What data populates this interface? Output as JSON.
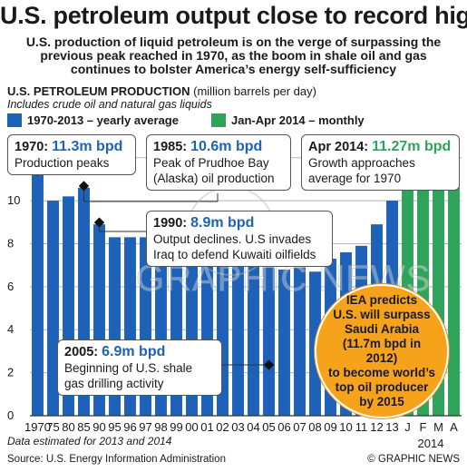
{
  "headline": "U.S. petroleum output close to record high",
  "subhead": "U.S. production of liquid petroleum is on the verge of surpassing the previous peak reached in 1970, as the boom in shale oil and gas continues to bolster America’s energy self-sufficiency",
  "chart_title": "U.S. PETROLEUM PRODUCTION",
  "chart_unit": "(million barrels per day)",
  "chart_note": "Includes crude oil and natural gas liquids",
  "legend": {
    "yearly": "1970-2013 – yearly average",
    "monthly": "Jan-Apr 2014 – monthly"
  },
  "callouts": {
    "c1970": {
      "label": "1970:",
      "value": "11.3m bpd",
      "text": "Production peaks"
    },
    "c1985": {
      "label": "1985:",
      "value": "10.6m bpd",
      "text": "Peak of Prudhoe Bay (Alaska) oil production"
    },
    "c1990": {
      "label": "1990:",
      "value": "8.9m bpd",
      "text": "Output declines. U.S invades Iraq to defend Kuwaiti oilfields"
    },
    "c2005": {
      "label": "2005:",
      "value": "6.9m bpd",
      "text": "Beginning of U.S. shale gas drilling activity"
    },
    "c2014": {
      "label": "Apr 2014:",
      "value": "11.27m bpd",
      "text": "Growth approaches average for 1970"
    }
  },
  "iea": [
    "IEA predicts",
    "U.S. will surpass",
    "Saudi Arabia",
    "(11.7m bpd in 2012)",
    "to become world’s",
    "top oil producer",
    "by 2015"
  ],
  "footnote": "Data estimated for 2013 and 2014",
  "source": "Source: U.S. Energy Information Administration",
  "credit": "© GRAPHIC NEWS",
  "watermark": "GRAPHIC NEWS",
  "chart_data": {
    "type": "bar",
    "categories": [
      "1970",
      "75",
      "80",
      "85",
      "90",
      "95",
      "96",
      "97",
      "98",
      "99",
      "00",
      "01",
      "02",
      "03",
      "04",
      "05",
      "06",
      "07",
      "08",
      "09",
      "10",
      "11",
      "12",
      "13",
      "J",
      "F",
      "M",
      "A"
    ],
    "group_label": "2014",
    "series": [
      {
        "name": "1970-2013 – yearly average",
        "color": "#1d62b8",
        "values": [
          11.3,
          10.0,
          10.2,
          10.6,
          8.9,
          8.3,
          8.3,
          8.3,
          8.0,
          7.7,
          7.7,
          7.7,
          7.6,
          7.4,
          7.2,
          6.9,
          6.8,
          6.9,
          6.7,
          7.3,
          7.6,
          7.9,
          8.9,
          10.0,
          null,
          null,
          null,
          null
        ]
      },
      {
        "name": "Jan-Apr 2014 – monthly",
        "color": "#2ea35a",
        "values": [
          null,
          null,
          null,
          null,
          null,
          null,
          null,
          null,
          null,
          null,
          null,
          null,
          null,
          null,
          null,
          null,
          null,
          null,
          null,
          null,
          null,
          null,
          null,
          null,
          10.7,
          10.8,
          11.0,
          11.27
        ]
      }
    ],
    "yticks": [
      0,
      2,
      4,
      6,
      8,
      10,
      12
    ],
    "ylim": [
      0,
      13
    ],
    "grid": true
  }
}
